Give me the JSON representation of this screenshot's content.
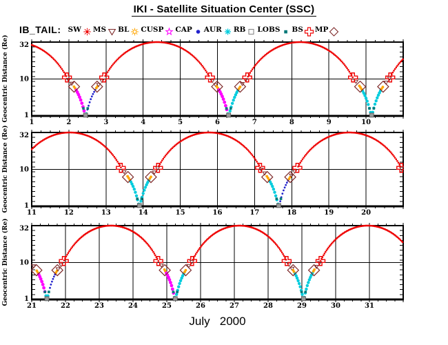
{
  "title": "IKI - Satellite Situation Center (SSC)",
  "legend": {
    "satellite_label": "IB_TAIL:",
    "items": [
      {
        "label": "SW",
        "color": "#ee0000",
        "symbol": "sun-filled"
      },
      {
        "label": "MS",
        "color": "#7e2a2a",
        "symbol": "triangle-open"
      },
      {
        "label": "BL",
        "color": "#ffa500",
        "symbol": "sun-open"
      },
      {
        "label": "CUSP",
        "color": "#ff00ff",
        "symbol": "star-open"
      },
      {
        "label": "CAP",
        "color": "#2222cc",
        "symbol": "circle-filled"
      },
      {
        "label": "AUR",
        "color": "#00ccdd",
        "symbol": "asterisk"
      },
      {
        "label": "RB",
        "color": "#888888",
        "symbol": "square-open"
      },
      {
        "label": "LOBS",
        "color": "#007878",
        "symbol": "square-filled"
      },
      {
        "label": "BS",
        "color": "#ee0000",
        "symbol": "cross-open"
      },
      {
        "label": "MP",
        "color": "#7e2a2a",
        "symbol": "diamond-open"
      }
    ]
  },
  "chart_data": {
    "type": "line",
    "title": "IKI - Satellite Situation Center (SSC)",
    "satellite": "IB_TAIL",
    "xlabel": "July   2000",
    "ylabel": "Geocentric Distance (Re)",
    "ylim": [
      1,
      32
    ],
    "yticks": [
      32,
      10,
      1
    ],
    "y_scale": "log-like: 1 at bottom, 10 at middle gridline, 32 at top",
    "grid": "vertical line each day, horizontal line at 10 Re",
    "panels": [
      {
        "day_start": 1,
        "day_end": 11,
        "xticks": [
          1,
          2,
          3,
          4,
          5,
          6,
          7,
          8,
          9,
          10
        ]
      },
      {
        "day_start": 11,
        "day_end": 21,
        "xticks": [
          11,
          12,
          13,
          14,
          15,
          16,
          17,
          18,
          19,
          20
        ]
      },
      {
        "day_start": 21,
        "day_end": 32,
        "xticks": [
          21,
          22,
          23,
          24,
          25,
          26,
          27,
          28,
          29,
          30,
          31
        ]
      }
    ],
    "orbit": {
      "period_days": 3.8,
      "apogee_re": 32,
      "perigee_re": 1,
      "shape_exponent": 1.3,
      "bs_crossing_re": 10.5,
      "mp_crossing_re": 6.2,
      "ms_range_re": [
        6.6,
        10.4
      ],
      "bl_range_re": [
        5.2,
        6.6
      ],
      "inner_range_re": [
        1,
        5.2
      ],
      "lobs_re": 1.6,
      "rb_re": 1.05,
      "perigees": [
        {
          "day": 2.45,
          "descending": "CUSP",
          "ascending": "CAP"
        },
        {
          "day": 6.3,
          "descending": "CUSP",
          "ascending": "AUR"
        },
        {
          "day": 10.15,
          "descending": "AUR",
          "ascending": "AUR"
        },
        {
          "day": 13.9,
          "descending": "AUR",
          "ascending": "AUR"
        },
        {
          "day": 17.65,
          "descending": "AUR",
          "ascending": "CAP"
        },
        {
          "day": 21.45,
          "descending": "CUSP",
          "ascending": "CAP"
        },
        {
          "day": 25.25,
          "descending": "CUSP",
          "ascending": "AUR"
        },
        {
          "day": 29.05,
          "descending": "AUR",
          "ascending": "AUR"
        }
      ]
    }
  }
}
